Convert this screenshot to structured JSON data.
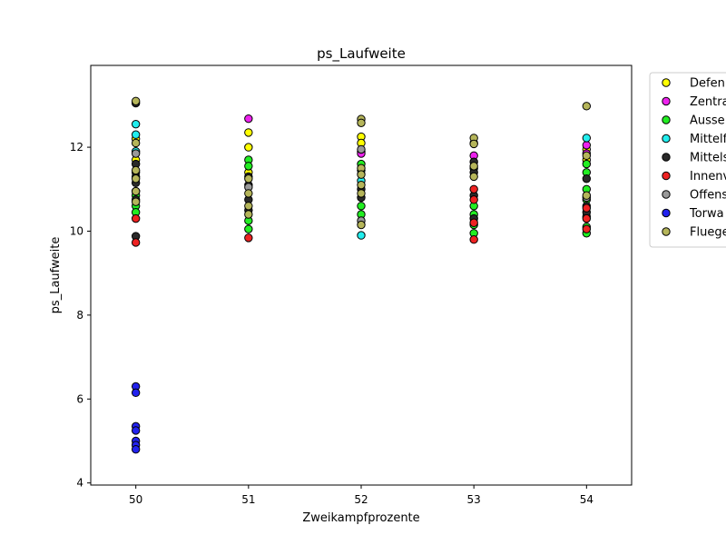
{
  "chart_data": {
    "type": "scatter",
    "title": "ps_Laufweite",
    "xlabel": "Zweikampfprozente",
    "ylabel": "ps_Laufweite",
    "xlim": [
      49.6,
      54.4
    ],
    "ylim": [
      3.95,
      13.95
    ],
    "xticks": [
      50,
      51,
      52,
      53,
      54
    ],
    "yticks": [
      4,
      6,
      8,
      10,
      12
    ],
    "grid": false,
    "legend_position": "outside-top-right",
    "series": [
      {
        "name": "Defen",
        "color": "#ffff00",
        "points": [
          {
            "x": 50,
            "y": 12.2
          },
          {
            "x": 50,
            "y": 11.7
          },
          {
            "x": 51,
            "y": 12.35
          },
          {
            "x": 51,
            "y": 12.0
          },
          {
            "x": 51,
            "y": 11.4
          },
          {
            "x": 52,
            "y": 12.25
          },
          {
            "x": 52,
            "y": 12.1
          },
          {
            "x": 52,
            "y": 11.9
          },
          {
            "x": 53,
            "y": 12.1
          },
          {
            "x": 54,
            "y": 11.95
          },
          {
            "x": 54,
            "y": 11.7
          }
        ]
      },
      {
        "name": "Zentra",
        "color": "#ee22ee",
        "points": [
          {
            "x": 51,
            "y": 12.68
          },
          {
            "x": 52,
            "y": 11.85
          },
          {
            "x": 53,
            "y": 11.8
          },
          {
            "x": 54,
            "y": 12.05
          },
          {
            "x": 54,
            "y": 11.85
          }
        ]
      },
      {
        "name": "Ausse",
        "color": "#22ee22",
        "points": [
          {
            "x": 50,
            "y": 10.6
          },
          {
            "x": 50,
            "y": 10.45
          },
          {
            "x": 50,
            "y": 11.3
          },
          {
            "x": 50,
            "y": 10.85
          },
          {
            "x": 51,
            "y": 11.7
          },
          {
            "x": 51,
            "y": 11.55
          },
          {
            "x": 51,
            "y": 10.25
          },
          {
            "x": 51,
            "y": 10.05
          },
          {
            "x": 52,
            "y": 11.6
          },
          {
            "x": 52,
            "y": 11.45
          },
          {
            "x": 52,
            "y": 10.6
          },
          {
            "x": 52,
            "y": 10.4
          },
          {
            "x": 53,
            "y": 11.5
          },
          {
            "x": 53,
            "y": 10.6
          },
          {
            "x": 53,
            "y": 10.4
          },
          {
            "x": 53,
            "y": 10.15
          },
          {
            "x": 53,
            "y": 9.95
          },
          {
            "x": 54,
            "y": 11.6
          },
          {
            "x": 54,
            "y": 11.4
          },
          {
            "x": 54,
            "y": 11.0
          },
          {
            "x": 54,
            "y": 10.75
          },
          {
            "x": 54,
            "y": 10.35
          },
          {
            "x": 54,
            "y": 10.1
          },
          {
            "x": 54,
            "y": 9.95
          }
        ]
      },
      {
        "name": "Mittelf",
        "color": "#22eeee",
        "points": [
          {
            "x": 50,
            "y": 12.55
          },
          {
            "x": 50,
            "y": 12.3
          },
          {
            "x": 50,
            "y": 11.9
          },
          {
            "x": 52,
            "y": 11.2
          },
          {
            "x": 52,
            "y": 9.9
          },
          {
            "x": 54,
            "y": 12.22
          }
        ]
      },
      {
        "name": "Mittels",
        "color": "#2a2a2a",
        "points": [
          {
            "x": 50,
            "y": 13.05
          },
          {
            "x": 50,
            "y": 11.6
          },
          {
            "x": 50,
            "y": 11.4
          },
          {
            "x": 50,
            "y": 11.15
          },
          {
            "x": 50,
            "y": 10.95
          },
          {
            "x": 50,
            "y": 10.75
          },
          {
            "x": 50,
            "y": 9.88
          },
          {
            "x": 51,
            "y": 11.3
          },
          {
            "x": 51,
            "y": 11.1
          },
          {
            "x": 51,
            "y": 10.75
          },
          {
            "x": 51,
            "y": 10.5
          },
          {
            "x": 52,
            "y": 11.0
          },
          {
            "x": 52,
            "y": 10.8
          },
          {
            "x": 53,
            "y": 11.65
          },
          {
            "x": 53,
            "y": 11.4
          },
          {
            "x": 53,
            "y": 10.85
          },
          {
            "x": 53,
            "y": 10.3
          },
          {
            "x": 54,
            "y": 11.25
          },
          {
            "x": 54,
            "y": 10.6
          },
          {
            "x": 54,
            "y": 10.45
          }
        ]
      },
      {
        "name": "Innenv",
        "color": "#ee2222",
        "points": [
          {
            "x": 50,
            "y": 10.3
          },
          {
            "x": 50,
            "y": 9.73
          },
          {
            "x": 51,
            "y": 9.84
          },
          {
            "x": 53,
            "y": 11.0
          },
          {
            "x": 53,
            "y": 10.75
          },
          {
            "x": 53,
            "y": 10.2
          },
          {
            "x": 53,
            "y": 9.8
          },
          {
            "x": 54,
            "y": 10.55
          },
          {
            "x": 54,
            "y": 10.3
          },
          {
            "x": 54,
            "y": 10.05
          }
        ]
      },
      {
        "name": "Offens",
        "color": "#999999",
        "points": [
          {
            "x": 50,
            "y": 11.85
          },
          {
            "x": 51,
            "y": 11.05
          },
          {
            "x": 52,
            "y": 11.95
          },
          {
            "x": 52,
            "y": 10.25
          },
          {
            "x": 54,
            "y": 10.8
          }
        ]
      },
      {
        "name": "Torwa",
        "color": "#2222ee",
        "points": [
          {
            "x": 50,
            "y": 6.3
          },
          {
            "x": 50,
            "y": 6.15
          },
          {
            "x": 50,
            "y": 5.35
          },
          {
            "x": 50,
            "y": 5.25
          },
          {
            "x": 50,
            "y": 5.0
          },
          {
            "x": 50,
            "y": 4.9
          },
          {
            "x": 50,
            "y": 4.8
          }
        ]
      },
      {
        "name": "Fluege",
        "color": "#b5b55a",
        "points": [
          {
            "x": 50,
            "y": 13.1
          },
          {
            "x": 50,
            "y": 12.1
          },
          {
            "x": 50,
            "y": 11.45
          },
          {
            "x": 50,
            "y": 11.25
          },
          {
            "x": 50,
            "y": 10.95
          },
          {
            "x": 50,
            "y": 10.7
          },
          {
            "x": 51,
            "y": 11.25
          },
          {
            "x": 51,
            "y": 10.9
          },
          {
            "x": 51,
            "y": 10.6
          },
          {
            "x": 51,
            "y": 10.4
          },
          {
            "x": 52,
            "y": 12.67
          },
          {
            "x": 52,
            "y": 12.58
          },
          {
            "x": 52,
            "y": 11.5
          },
          {
            "x": 52,
            "y": 11.35
          },
          {
            "x": 52,
            "y": 11.1
          },
          {
            "x": 52,
            "y": 10.9
          },
          {
            "x": 52,
            "y": 10.15
          },
          {
            "x": 53,
            "y": 12.22
          },
          {
            "x": 53,
            "y": 12.08
          },
          {
            "x": 53,
            "y": 11.55
          },
          {
            "x": 53,
            "y": 11.3
          },
          {
            "x": 54,
            "y": 12.98
          },
          {
            "x": 54,
            "y": 11.8
          },
          {
            "x": 54,
            "y": 10.85
          }
        ]
      }
    ]
  }
}
